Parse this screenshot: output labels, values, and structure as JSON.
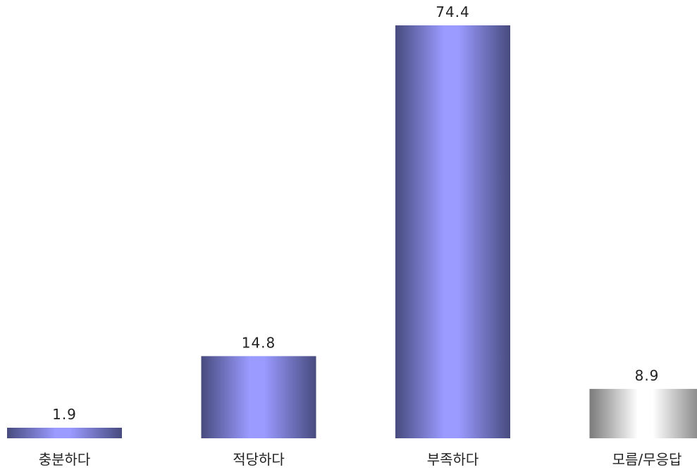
{
  "chart_data": {
    "type": "bar",
    "title": "",
    "xlabel": "",
    "ylabel": "",
    "categories": [
      "충분하다",
      "적당하다",
      "부족하다",
      "모름/무응답"
    ],
    "values": [
      1.9,
      14.8,
      74.4,
      8.9
    ],
    "value_labels": [
      "1.9",
      "14.8",
      "74.4",
      "8.9"
    ],
    "ylim": [
      0,
      74.4
    ],
    "grid": false,
    "legend": "none",
    "bar_styles": [
      "blue",
      "blue",
      "blue",
      "gray"
    ]
  },
  "colors": {
    "blue_edge": "#474b7e",
    "blue_center": "#9a9aff",
    "gray_edge": "#7a7a7a",
    "gray_center": "#ffffff",
    "text": "#222222"
  }
}
